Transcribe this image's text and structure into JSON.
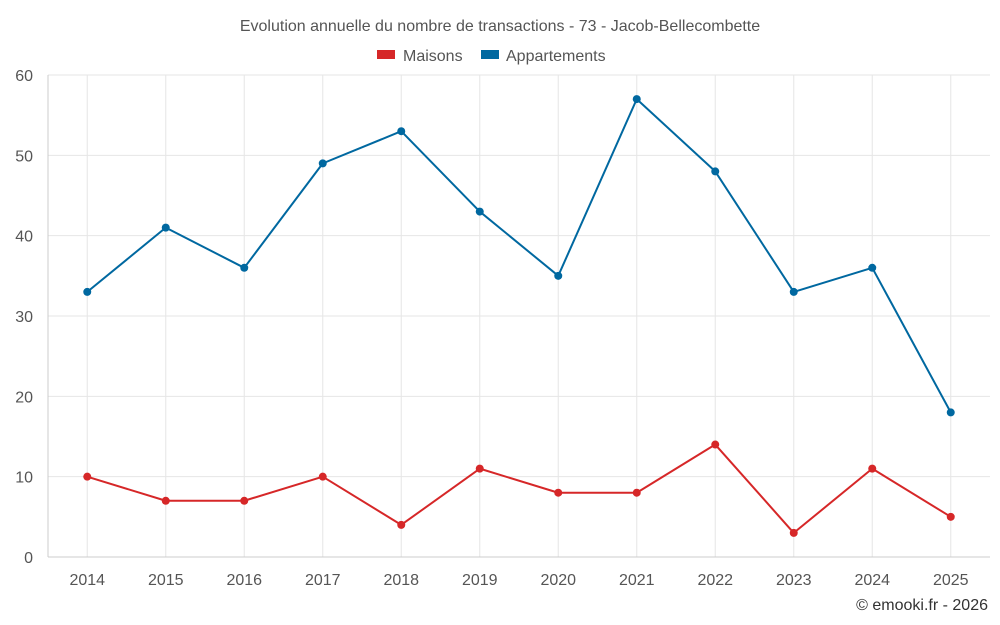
{
  "chart_data": {
    "type": "line",
    "title": "Evolution annuelle du nombre de transactions - 73 - Jacob-Bellecombette",
    "categories": [
      "2014",
      "2015",
      "2016",
      "2017",
      "2018",
      "2019",
      "2020",
      "2021",
      "2022",
      "2023",
      "2024",
      "2025"
    ],
    "series": [
      {
        "name": "Maisons",
        "color": "#d62728",
        "values": [
          10,
          7,
          7,
          10,
          4,
          11,
          8,
          8,
          14,
          3,
          11,
          5
        ]
      },
      {
        "name": "Appartements",
        "color": "#0068a0",
        "values": [
          33,
          41,
          36,
          49,
          53,
          43,
          35,
          57,
          48,
          33,
          36,
          18
        ]
      }
    ],
    "ylim": [
      0,
      60
    ],
    "yticks": [
      0,
      10,
      20,
      30,
      40,
      50,
      60
    ],
    "xlabel": "",
    "ylabel": "",
    "grid": true,
    "legend_position": "top-center"
  },
  "credit": "© emooki.fr - 2026"
}
